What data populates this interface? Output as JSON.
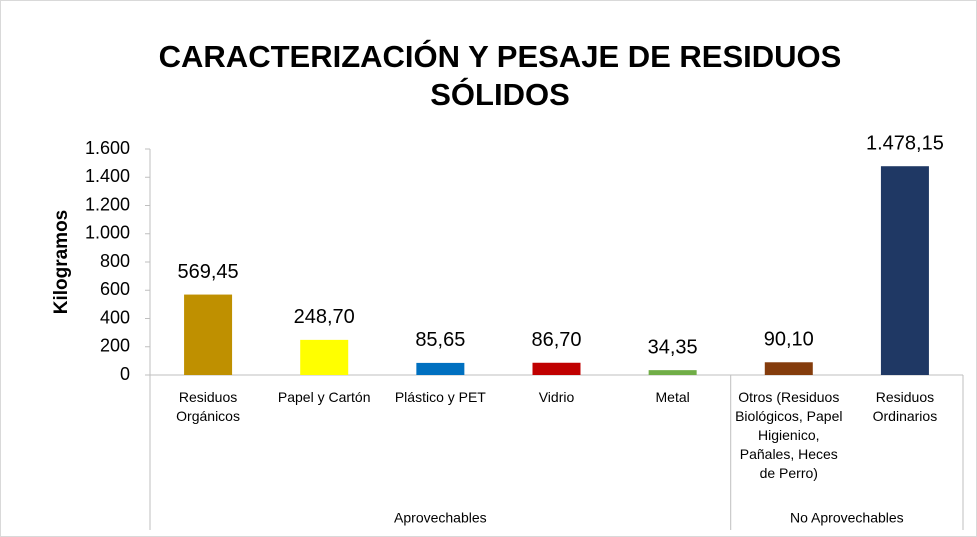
{
  "chart_data": {
    "type": "bar",
    "title": "CARACTERIZACIÓN Y PESAJE DE RESIDUOS SÓLIDOS",
    "y_label": "Kilogramos",
    "categories": [
      "Residuos Orgánicos",
      "Papel y Cartón",
      "Plástico y PET",
      "Vidrio",
      "Metal",
      "Otros (Residuos Biológicos, Papel Higienico, Pañales, Heces de Perro)",
      "Residuos Ordinarios"
    ],
    "values": [
      569.45,
      248.7,
      85.65,
      86.7,
      34.35,
      90.1,
      1478.15
    ],
    "value_labels": [
      "569,45",
      "248,70",
      "85,65",
      "86,70",
      "34,35",
      "90,10",
      "1.478,15"
    ],
    "colors": [
      "#bf9000",
      "#ffff00",
      "#0070c0",
      "#c00000",
      "#70ad47",
      "#843c0c",
      "#1f3864"
    ],
    "groups": [
      {
        "label": "Aprovechables",
        "size": 5
      },
      {
        "label": "No Aprovechables",
        "size": 2
      }
    ],
    "ylim": [
      0,
      1600
    ],
    "yticks": [
      0,
      200,
      400,
      600,
      800,
      {
        "value": 1000,
        "label": "1.000"
      },
      {
        "value": 1200,
        "label": "1.200"
      },
      {
        "value": 1400,
        "label": "1.400"
      },
      {
        "value": 1600,
        "label": "1.600"
      }
    ],
    "grid": false
  }
}
